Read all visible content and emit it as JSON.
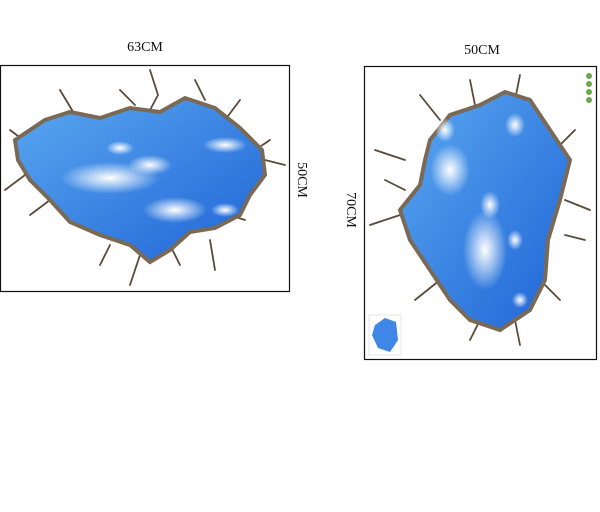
{
  "stickers": [
    {
      "width_label": "63CM",
      "height_label": "50CM"
    },
    {
      "width_label": "50CM",
      "height_label": "70CM"
    }
  ]
}
